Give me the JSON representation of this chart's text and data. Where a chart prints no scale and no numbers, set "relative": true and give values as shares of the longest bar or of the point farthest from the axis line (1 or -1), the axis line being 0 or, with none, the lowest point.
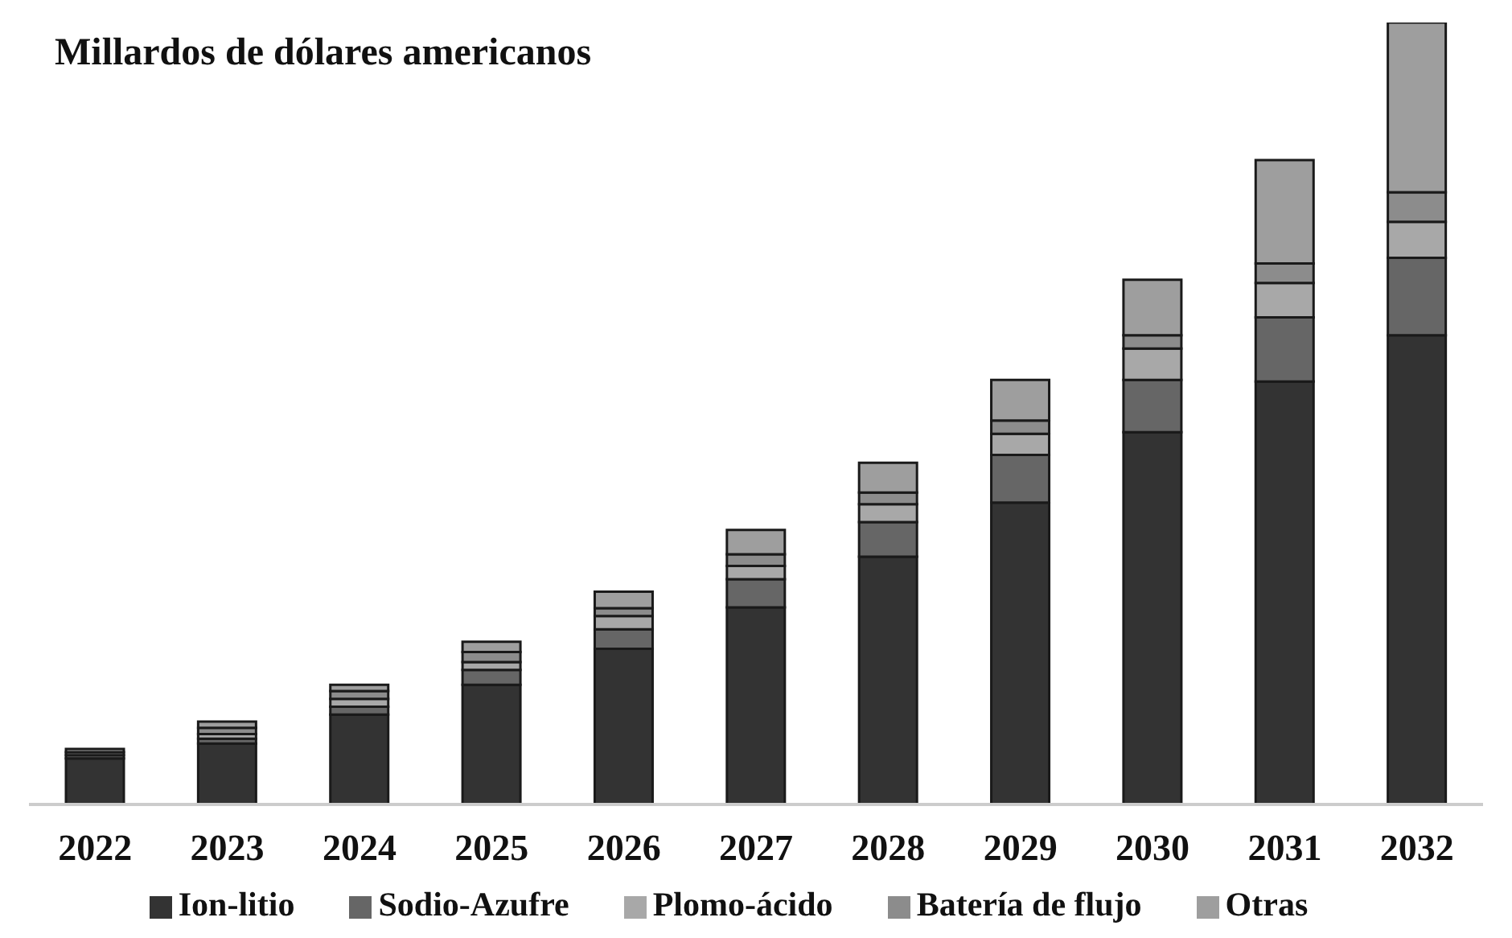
{
  "chart_data": {
    "type": "bar",
    "title": "Millardos de dólares americanos",
    "relative": true,
    "stacked": true,
    "legend": "bottom",
    "grid": false,
    "categories": [
      "2022",
      "2023",
      "2024",
      "2025",
      "2026",
      "2027",
      "2028",
      "2029",
      "2030",
      "2031",
      "2032"
    ],
    "series": [
      {
        "name": "Ion-litio",
        "color": "#333333",
        "values": [
          0.059,
          0.078,
          0.115,
          0.153,
          0.199,
          0.252,
          0.317,
          0.386,
          0.476,
          0.541,
          0.6
        ]
      },
      {
        "name": "Sodio-Azufre",
        "color": "#666666",
        "values": [
          0.004,
          0.006,
          0.01,
          0.019,
          0.025,
          0.036,
          0.044,
          0.061,
          0.067,
          0.082,
          0.099
        ]
      },
      {
        "name": "Plomo-ácido",
        "color": "#a8a8a8",
        "values": [
          null,
          0.006,
          0.01,
          0.01,
          0.017,
          0.017,
          0.023,
          0.027,
          0.04,
          0.044,
          0.046
        ]
      },
      {
        "name": "Batería de flujo",
        "color": "#8c8c8c",
        "values": [
          0.004,
          0.008,
          0.01,
          0.013,
          0.01,
          0.015,
          0.015,
          0.017,
          0.017,
          0.025,
          0.038
        ]
      },
      {
        "name": "Otras",
        "color": "#9e9e9e",
        "values": [
          0.004,
          0.008,
          0.008,
          0.013,
          0.021,
          0.031,
          0.038,
          0.052,
          0.071,
          0.132,
          0.217
        ]
      }
    ]
  }
}
